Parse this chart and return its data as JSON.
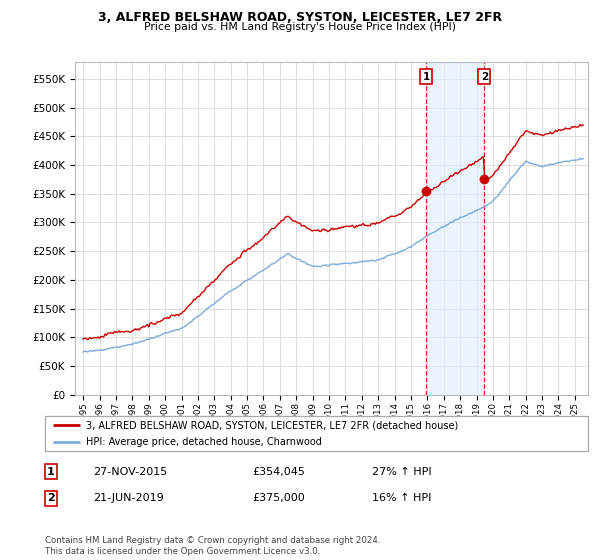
{
  "title": "3, ALFRED BELSHAW ROAD, SYSTON, LEICESTER, LE7 2FR",
  "subtitle": "Price paid vs. HM Land Registry's House Price Index (HPI)",
  "legend_line1": "3, ALFRED BELSHAW ROAD, SYSTON, LEICESTER, LE7 2FR (detached house)",
  "legend_line2": "HPI: Average price, detached house, Charnwood",
  "transaction1_date": "27-NOV-2015",
  "transaction1_price": "£354,045",
  "transaction1_hpi": "27% ↑ HPI",
  "transaction1_year": 2015.92,
  "transaction1_value": 354045,
  "transaction2_date": "21-JUN-2019",
  "transaction2_price": "£375,000",
  "transaction2_hpi": "16% ↑ HPI",
  "transaction2_year": 2019.47,
  "transaction2_value": 375000,
  "footnote": "Contains HM Land Registry data © Crown copyright and database right 2024.\nThis data is licensed under the Open Government Licence v3.0.",
  "red_color": "#cc0000",
  "blue_color": "#7aabdc",
  "blue_fill_color": "#ddeeff",
  "background_color": "#ffffff",
  "grid_color": "#dddddd",
  "ylim_min": 0,
  "ylim_max": 580000,
  "xmin": 1994.5,
  "xmax": 2025.8
}
